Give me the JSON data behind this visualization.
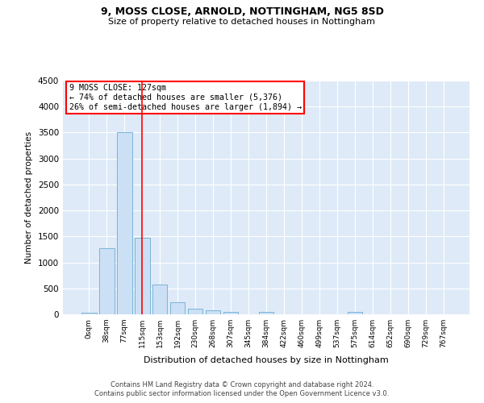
{
  "title1": "9, MOSS CLOSE, ARNOLD, NOTTINGHAM, NG5 8SD",
  "title2": "Size of property relative to detached houses in Nottingham",
  "xlabel": "Distribution of detached houses by size in Nottingham",
  "ylabel": "Number of detached properties",
  "bin_labels": [
    "0sqm",
    "38sqm",
    "77sqm",
    "115sqm",
    "153sqm",
    "192sqm",
    "230sqm",
    "268sqm",
    "307sqm",
    "345sqm",
    "384sqm",
    "422sqm",
    "460sqm",
    "499sqm",
    "537sqm",
    "575sqm",
    "614sqm",
    "652sqm",
    "690sqm",
    "729sqm",
    "767sqm"
  ],
  "bar_values": [
    30,
    1270,
    3500,
    1470,
    570,
    235,
    115,
    80,
    50,
    0,
    45,
    0,
    0,
    0,
    0,
    45,
    0,
    0,
    0,
    0,
    0
  ],
  "bar_color": "#cce0f5",
  "bar_edge_color": "#7ab3d9",
  "vline_x": 3,
  "annotation_text": "9 MOSS CLOSE: 127sqm\n← 74% of detached houses are smaller (5,376)\n26% of semi-detached houses are larger (1,894) →",
  "annotation_box_color": "white",
  "annotation_box_edge_color": "red",
  "vline_color": "red",
  "ylim": [
    0,
    4500
  ],
  "yticks": [
    0,
    500,
    1000,
    1500,
    2000,
    2500,
    3000,
    3500,
    4000,
    4500
  ],
  "plot_bg_color": "#deeaf7",
  "footer1": "Contains HM Land Registry data © Crown copyright and database right 2024.",
  "footer2": "Contains public sector information licensed under the Open Government Licence v3.0."
}
